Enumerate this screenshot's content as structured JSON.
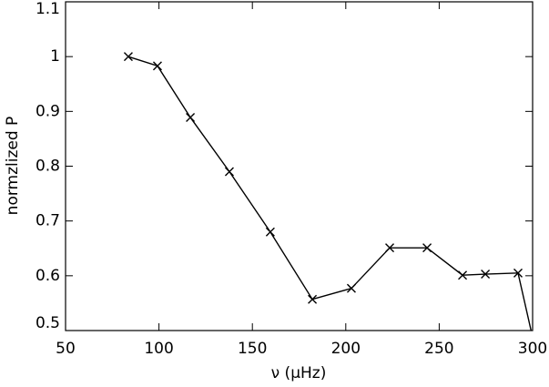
{
  "chart_data": {
    "type": "line",
    "x_label": "ν (μHz)",
    "y_label": "normzlized P",
    "x": [
      83.6,
      99.2,
      116.8,
      137.7,
      159.6,
      182.1,
      203.0,
      223.5,
      243.5,
      262.5,
      274.7,
      292.2,
      300.5
    ],
    "series": [
      {
        "color": "#000000",
        "marker": "x",
        "values": [
          1.0,
          0.983,
          0.889,
          0.79,
          0.68,
          0.557,
          0.577,
          0.651,
          0.651,
          0.601,
          0.603,
          0.605,
          0.48
        ]
      }
    ],
    "xlim": [
      50,
      300
    ],
    "xticks": [
      50,
      100,
      150,
      200,
      250,
      300
    ],
    "ylim": [
      0.5,
      1.1
    ],
    "yticks": [
      0.5,
      0.6,
      0.7,
      0.8,
      0.9,
      1.0,
      1.1
    ]
  }
}
